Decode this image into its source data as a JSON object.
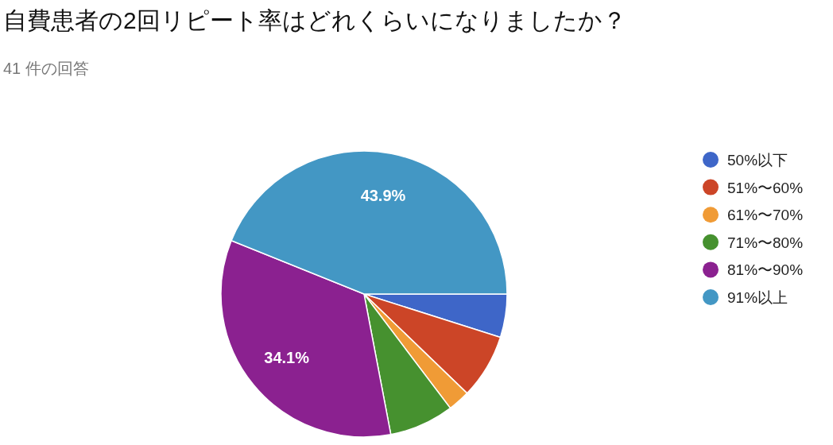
{
  "chart_data": {
    "type": "pie",
    "title": "自費患者の2回リピート率はどれくらいになりましたか？",
    "subtitle": "41 件の回答",
    "categories": [
      "50%以下",
      "51%〜60%",
      "61%〜70%",
      "71%〜80%",
      "81%〜90%",
      "91%以上"
    ],
    "values": [
      4.9,
      7.3,
      2.5,
      7.3,
      34.1,
      43.9
    ],
    "colors": [
      "#3e66c8",
      "#cc4527",
      "#f09b36",
      "#46912f",
      "#8b2190",
      "#4397c4"
    ],
    "value_labels": [
      null,
      null,
      null,
      null,
      "34.1%",
      "43.9%"
    ],
    "legend": "right"
  }
}
